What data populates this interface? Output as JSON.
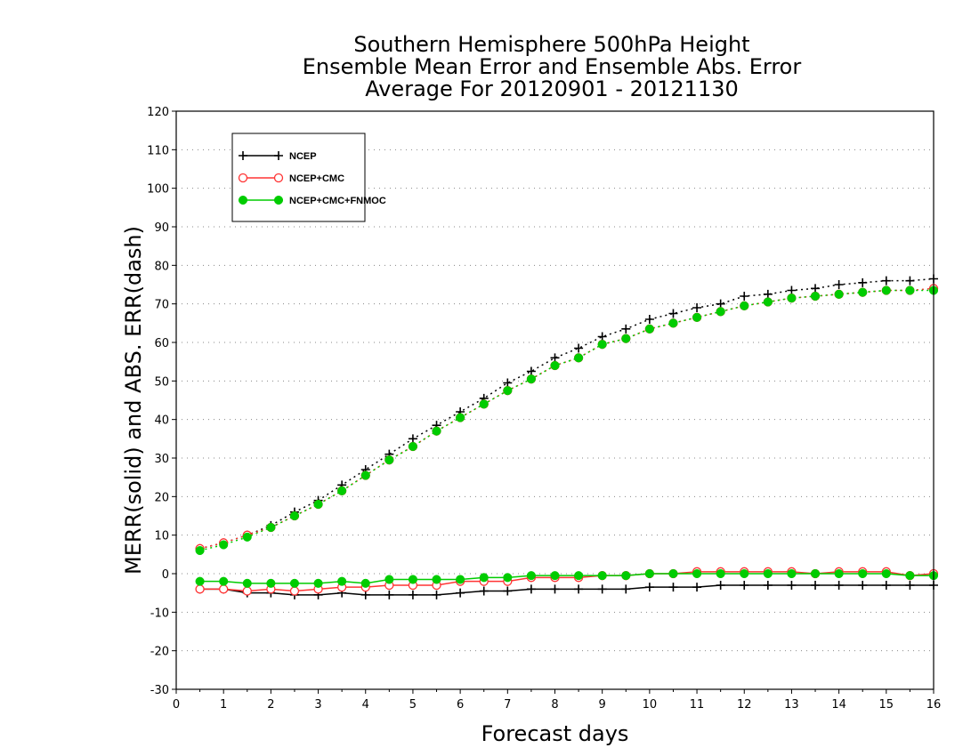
{
  "chart_data": {
    "type": "line",
    "title": [
      "Southern Hemisphere 500hPa Height",
      "Ensemble Mean Error and Ensemble Abs. Error",
      "Average For 20120901 - 20121130"
    ],
    "xlabel": "Forecast days",
    "ylabel": "MERR(solid) and ABS. ERR(dash)",
    "xlim": [
      0,
      16
    ],
    "ylim": [
      -30,
      120
    ],
    "x_ticks": [
      0,
      1,
      2,
      3,
      4,
      5,
      6,
      7,
      8,
      9,
      10,
      11,
      12,
      13,
      14,
      15,
      16
    ],
    "y_ticks": [
      -30,
      -20,
      -10,
      0,
      10,
      20,
      30,
      40,
      50,
      60,
      70,
      80,
      90,
      100,
      110,
      120
    ],
    "grid": "dotted horizontal",
    "legend_position": "top-left",
    "x": [
      0.5,
      1,
      1.5,
      2,
      2.5,
      3,
      3.5,
      4,
      4.5,
      5,
      5.5,
      6,
      6.5,
      7,
      7.5,
      8,
      8.5,
      9,
      9.5,
      10,
      10.5,
      11,
      11.5,
      12,
      12.5,
      13,
      13.5,
      14,
      14.5,
      15,
      15.5,
      16
    ],
    "series": [
      {
        "name": "NCEP",
        "color": "#000000",
        "marker": "plus",
        "merr": [
          -4,
          -4,
          -5,
          -5,
          -5.5,
          -5.5,
          -5,
          -5.5,
          -5.5,
          -5.5,
          -5.5,
          -5,
          -4.5,
          -4.5,
          -4,
          -4,
          -4,
          -4,
          -4,
          -3.5,
          -3.5,
          -3.5,
          -3,
          -3,
          -3,
          -3,
          -3,
          -3,
          -3,
          -3,
          -3,
          -3
        ],
        "abs_err": [
          6.5,
          8,
          10,
          12.5,
          16,
          19,
          23,
          27,
          31,
          35,
          38.5,
          42,
          45.5,
          49.5,
          52.5,
          56,
          58.5,
          61.5,
          63.5,
          66,
          67.5,
          69,
          70,
          72,
          72.5,
          73.5,
          74,
          75,
          75.5,
          76,
          76,
          76.5
        ]
      },
      {
        "name": "NCEP+CMC",
        "color": "#ff3333",
        "marker": "open-circle",
        "merr": [
          -4,
          -4,
          -4.5,
          -4,
          -4.5,
          -4,
          -3.5,
          -3.5,
          -3,
          -3,
          -3,
          -2,
          -2,
          -2,
          -1,
          -1,
          -1,
          -0.5,
          -0.5,
          0,
          0,
          0.5,
          0.5,
          0.5,
          0.5,
          0.5,
          0,
          0.5,
          0.5,
          0.5,
          -0.5,
          0
        ],
        "abs_err": [
          6.5,
          8,
          10,
          12,
          15,
          18,
          21.5,
          25.5,
          29.5,
          33,
          37,
          40.5,
          44,
          47.5,
          50.5,
          54,
          56,
          59.5,
          61,
          63.5,
          65,
          66.5,
          68,
          69.5,
          70.5,
          71.5,
          72,
          72.5,
          73,
          73.5,
          73.5,
          74
        ]
      },
      {
        "name": "NCEP+CMC+FNMOC",
        "color": "#00cc00",
        "marker": "filled-circle",
        "merr": [
          -2,
          -2,
          -2.5,
          -2.5,
          -2.5,
          -2.5,
          -2,
          -2.5,
          -1.5,
          -1.5,
          -1.5,
          -1.5,
          -1,
          -1,
          -0.5,
          -0.5,
          -0.5,
          -0.5,
          -0.5,
          0,
          0,
          0,
          0,
          0,
          0,
          0,
          0,
          0,
          0,
          0,
          -0.5,
          -0.5
        ],
        "abs_err": [
          6,
          7.5,
          9.5,
          12,
          15,
          18,
          21.5,
          25.5,
          29.5,
          33,
          37,
          40.5,
          44,
          47.5,
          50.5,
          54,
          56,
          59.5,
          61,
          63.5,
          65,
          66.5,
          68,
          69.5,
          70.5,
          71.5,
          72,
          72.5,
          73,
          73.5,
          73.5,
          73.5
        ]
      }
    ]
  }
}
